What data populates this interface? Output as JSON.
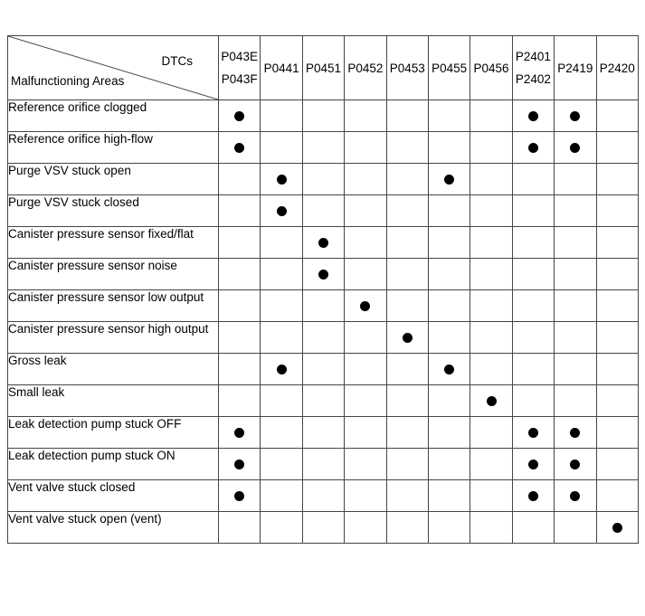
{
  "colors": {
    "background": "#ffffff",
    "grid_line": "#454545",
    "text": "#000000",
    "dot": "#000000"
  },
  "header": {
    "dtcs_label": "DTCs",
    "areas_label": "Malfunctioning Areas",
    "columns": [
      {
        "lines": [
          "P043E",
          "P043F"
        ]
      },
      {
        "lines": [
          "P0441"
        ]
      },
      {
        "lines": [
          "P0451"
        ]
      },
      {
        "lines": [
          "P0452"
        ]
      },
      {
        "lines": [
          "P0453"
        ]
      },
      {
        "lines": [
          "P0455"
        ]
      },
      {
        "lines": [
          "P0456"
        ]
      },
      {
        "lines": [
          "P2401",
          "P2402"
        ]
      },
      {
        "lines": [
          "P2419"
        ]
      },
      {
        "lines": [
          "P2420"
        ]
      }
    ]
  },
  "rows": [
    {
      "label": "Reference orifice clogged",
      "dots": [
        1,
        0,
        0,
        0,
        0,
        0,
        0,
        1,
        1,
        0
      ]
    },
    {
      "label": "Reference orifice high-flow",
      "dots": [
        1,
        0,
        0,
        0,
        0,
        0,
        0,
        1,
        1,
        0
      ]
    },
    {
      "label": "Purge VSV stuck open",
      "dots": [
        0,
        1,
        0,
        0,
        0,
        1,
        0,
        0,
        0,
        0
      ]
    },
    {
      "label": "Purge VSV stuck closed",
      "dots": [
        0,
        1,
        0,
        0,
        0,
        0,
        0,
        0,
        0,
        0
      ]
    },
    {
      "label": "Canister pressure sensor fixed/flat",
      "dots": [
        0,
        0,
        1,
        0,
        0,
        0,
        0,
        0,
        0,
        0
      ]
    },
    {
      "label": "Canister pressure sensor noise",
      "dots": [
        0,
        0,
        1,
        0,
        0,
        0,
        0,
        0,
        0,
        0
      ]
    },
    {
      "label": "Canister pressure sensor low output",
      "dots": [
        0,
        0,
        0,
        1,
        0,
        0,
        0,
        0,
        0,
        0
      ]
    },
    {
      "label": "Canister pressure sensor high output",
      "dots": [
        0,
        0,
        0,
        0,
        1,
        0,
        0,
        0,
        0,
        0
      ]
    },
    {
      "label": "Gross leak",
      "dots": [
        0,
        1,
        0,
        0,
        0,
        1,
        0,
        0,
        0,
        0
      ]
    },
    {
      "label": "Small leak",
      "dots": [
        0,
        0,
        0,
        0,
        0,
        0,
        1,
        0,
        0,
        0
      ]
    },
    {
      "label": "Leak detection pump stuck OFF",
      "dots": [
        1,
        0,
        0,
        0,
        0,
        0,
        0,
        1,
        1,
        0
      ]
    },
    {
      "label": "Leak detection pump stuck ON",
      "dots": [
        1,
        0,
        0,
        0,
        0,
        0,
        0,
        1,
        1,
        0
      ]
    },
    {
      "label": "Vent valve stuck closed",
      "dots": [
        1,
        0,
        0,
        0,
        0,
        0,
        0,
        1,
        1,
        0
      ]
    },
    {
      "label": "Vent valve stuck open (vent)",
      "dots": [
        0,
        0,
        0,
        0,
        0,
        0,
        0,
        0,
        0,
        1
      ]
    }
  ]
}
